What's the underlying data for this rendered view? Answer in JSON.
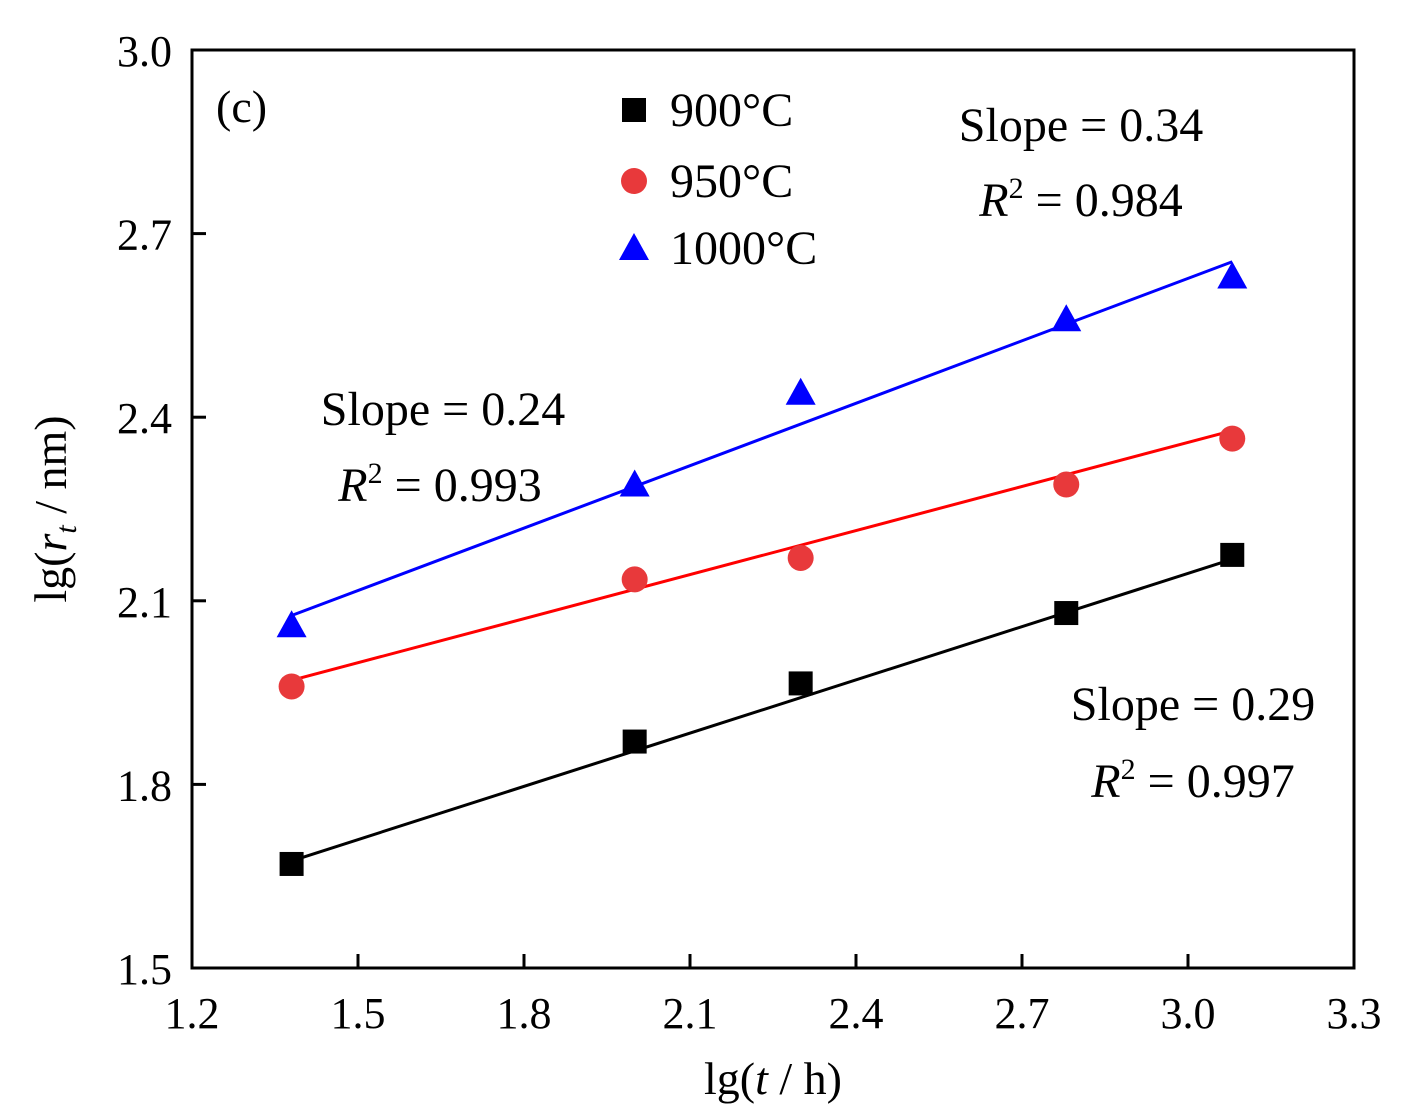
{
  "chart_data": {
    "type": "scatter",
    "panel_label": "(c)",
    "xlabel": {
      "prefix": "lg(",
      "var": "t",
      "suffix": " / h)"
    },
    "ylabel": {
      "prefix": "lg(",
      "var": "r",
      "sub": "t",
      "suffix": " / nm)"
    },
    "xlim": [
      1.2,
      3.3
    ],
    "ylim": [
      1.5,
      3.0
    ],
    "xticks": [
      "1.2",
      "1.5",
      "1.8",
      "2.1",
      "2.4",
      "2.7",
      "3.0",
      "3.3"
    ],
    "yticks": [
      "1.5",
      "1.8",
      "2.1",
      "2.4",
      "2.7",
      "3.0"
    ],
    "grid": false,
    "legend_position": "top-center",
    "series": [
      {
        "name": "900°C",
        "marker": "square",
        "color": "#000000",
        "x": [
          1.38,
          2.0,
          2.3,
          2.78,
          3.08
        ],
        "y": [
          1.67,
          1.87,
          1.965,
          2.08,
          2.175
        ],
        "fit": {
          "x": [
            1.38,
            3.08
          ],
          "y": [
            1.675,
            2.168
          ]
        },
        "slope_label": "Slope = 0.29",
        "r2_value": " = 0.997"
      },
      {
        "name": "950°C",
        "marker": "circle",
        "color": "#e8393b",
        "x": [
          1.38,
          2.0,
          2.3,
          2.78,
          3.08
        ],
        "y": [
          1.96,
          2.135,
          2.17,
          2.29,
          2.365
        ],
        "fit": {
          "x": [
            1.38,
            3.08
          ],
          "y": [
            1.97,
            2.378
          ]
        },
        "slope_label": "Slope = 0.24",
        "r2_value": " = 0.993"
      },
      {
        "name": "1000°C",
        "marker": "triangle",
        "color": "#0000ff",
        "x": [
          1.38,
          2.0,
          2.3,
          2.78,
          3.08
        ],
        "y": [
          2.06,
          2.29,
          2.44,
          2.56,
          2.63
        ],
        "fit": {
          "x": [
            1.38,
            3.08
          ],
          "y": [
            2.076,
            2.654
          ]
        },
        "slope_label": "Slope = 0.34",
        "r2_value": " = 0.984"
      }
    ],
    "r2_symbol": "R",
    "r2_exponent": "2",
    "line_colors": {
      "900": "#000000",
      "950": "#ff0000",
      "1000": "#0000ff"
    }
  }
}
